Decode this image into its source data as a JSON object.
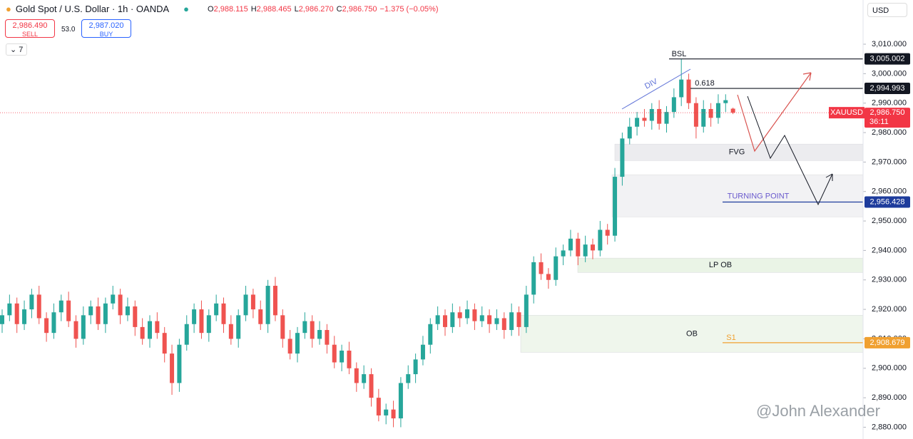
{
  "header": {
    "symbol": "Gold Spot / U.S. Dollar · 1h · OANDA",
    "ohlc": [
      {
        "key": "O",
        "value": "2,988.115"
      },
      {
        "key": "H",
        "value": "2,988.465"
      },
      {
        "key": "L",
        "value": "2,986.270"
      },
      {
        "key": "C",
        "value": "2,986.750"
      }
    ],
    "change": "−1.375 (−0.05%)",
    "sell_price": "2,986.490",
    "sell_label": "SELL",
    "spread": "53.0",
    "buy_price": "2,987.020",
    "buy_label": "BUY",
    "indicators": "7",
    "currency": "USD",
    "watermark": "@John Alexander"
  },
  "chart_data": {
    "type": "candlestick",
    "up_color": "#26a69a",
    "down_color": "#ef5350",
    "open": [
      2915,
      2918,
      2922,
      2915,
      2920,
      2925,
      2917,
      2912,
      2919,
      2923,
      2916,
      2910,
      2918,
      2921,
      2915,
      2922,
      2925,
      2918,
      2921,
      2914,
      2910,
      2916,
      2912,
      2905,
      2895,
      2908,
      2915,
      2920,
      2912,
      2918,
      2922,
      2915,
      2910,
      2918,
      2925,
      2920,
      2915,
      2928,
      2918,
      2910,
      2905,
      2912,
      2916,
      2910,
      2913,
      2908,
      2902,
      2906,
      2900,
      2895,
      2898,
      2890,
      2884,
      2886,
      2883,
      2895,
      2898,
      2903,
      2908,
      2915,
      2918,
      2914,
      2919,
      2917,
      2920,
      2916,
      2918,
      2915,
      2917,
      2913,
      2919,
      2914,
      2925,
      2936,
      2932,
      2930,
      2938,
      2940,
      2944,
      2938,
      2942,
      2940,
      2947,
      2945,
      2965,
      2978,
      2982,
      2985,
      2984,
      2988,
      2983,
      2987,
      2992,
      2998,
      2990,
      2982,
      2988,
      2985,
      2990,
      2988.115
    ],
    "high": [
      2920,
      2925,
      2924,
      2923,
      2927,
      2928,
      2919,
      2922,
      2925,
      2926,
      2918,
      2921,
      2923,
      2924,
      2924,
      2928,
      2927,
      2924,
      2923,
      2917,
      2918,
      2919,
      2914,
      2908,
      2910,
      2918,
      2922,
      2923,
      2920,
      2925,
      2924,
      2918,
      2920,
      2928,
      2927,
      2923,
      2930,
      2931,
      2920,
      2913,
      2914,
      2919,
      2918,
      2916,
      2915,
      2911,
      2908,
      2909,
      2902,
      2901,
      2900,
      2893,
      2888,
      2889,
      2897,
      2901,
      2905,
      2911,
      2917,
      2921,
      2920,
      2922,
      2921,
      2923,
      2922,
      2921,
      2920,
      2920,
      2919,
      2922,
      2921,
      2928,
      2938,
      2939,
      2934,
      2941,
      2942,
      2947,
      2946,
      2945,
      2944,
      2950,
      2949,
      2968,
      2980,
      2985,
      2987,
      2988,
      2990,
      2991,
      2989,
      2995,
      3005,
      3000,
      2992,
      2991,
      2990,
      2993,
      2993,
      2988.465
    ],
    "low": [
      2912,
      2916,
      2912,
      2913,
      2917,
      2915,
      2909,
      2910,
      2916,
      2914,
      2907,
      2908,
      2915,
      2913,
      2912,
      2920,
      2915,
      2916,
      2911,
      2908,
      2907,
      2910,
      2902,
      2891,
      2892,
      2906,
      2912,
      2910,
      2909,
      2916,
      2912,
      2908,
      2907,
      2916,
      2917,
      2913,
      2912,
      2916,
      2907,
      2903,
      2902,
      2910,
      2907,
      2908,
      2905,
      2900,
      2899,
      2898,
      2892,
      2893,
      2887,
      2882,
      2881,
      2880,
      2880,
      2893,
      2895,
      2901,
      2905,
      2913,
      2911,
      2912,
      2914,
      2915,
      2913,
      2914,
      2912,
      2913,
      2910,
      2911,
      2911,
      2912,
      2922,
      2930,
      2927,
      2928,
      2935,
      2938,
      2935,
      2936,
      2937,
      2938,
      2942,
      2943,
      2962,
      2976,
      2979,
      2982,
      2981,
      2981,
      2980,
      2985,
      2989,
      2988,
      2978,
      2980,
      2982,
      2983,
      2987,
      2986.27
    ],
    "close": [
      2918,
      2922,
      2915,
      2920,
      2925,
      2917,
      2912,
      2919,
      2923,
      2916,
      2910,
      2918,
      2921,
      2915,
      2922,
      2925,
      2918,
      2921,
      2914,
      2910,
      2916,
      2912,
      2905,
      2895,
      2908,
      2915,
      2920,
      2912,
      2918,
      2922,
      2915,
      2910,
      2918,
      2925,
      2920,
      2915,
      2928,
      2918,
      2910,
      2905,
      2912,
      2916,
      2910,
      2913,
      2908,
      2902,
      2906,
      2900,
      2895,
      2898,
      2890,
      2884,
      2886,
      2883,
      2895,
      2898,
      2903,
      2908,
      2915,
      2918,
      2914,
      2919,
      2917,
      2920,
      2916,
      2918,
      2915,
      2917,
      2913,
      2919,
      2914,
      2925,
      2936,
      2932,
      2930,
      2938,
      2940,
      2944,
      2938,
      2942,
      2940,
      2947,
      2945,
      2965,
      2978,
      2982,
      2985,
      2984,
      2988,
      2983,
      2987,
      2992,
      2998,
      2990,
      2982,
      2988,
      2985,
      2990,
      2991,
      2986.75
    ],
    "ylim": [
      2876,
      3025
    ],
    "yticks": [
      {
        "value": 2880,
        "label": "2,880.000"
      },
      {
        "value": 2890,
        "label": "2,890.000"
      },
      {
        "value": 2900,
        "label": "2,900.000"
      },
      {
        "value": 2910,
        "label": "2,910.000"
      },
      {
        "value": 2920,
        "label": "2,920.000"
      },
      {
        "value": 2930,
        "label": "2,930.000"
      },
      {
        "value": 2940,
        "label": "2,940.000"
      },
      {
        "value": 2950,
        "label": "2,950.000"
      },
      {
        "value": 2960,
        "label": "2,960.000"
      },
      {
        "value": 2970,
        "label": "2,970.000"
      },
      {
        "value": 2980,
        "label": "2,980.000"
      },
      {
        "value": 2990,
        "label": "2,990.000"
      },
      {
        "value": 3000,
        "label": "3,000.000"
      },
      {
        "value": 3010,
        "label": "3,010.000"
      }
    ],
    "levels": [
      {
        "value": 3005.002,
        "label": "3,005.002",
        "color": "#131722"
      },
      {
        "value": 2994.993,
        "label": "2,994.993",
        "color": "#131722"
      },
      {
        "value": 2986.75,
        "label": "2,986.750",
        "color": "#f23645",
        "symbol": "XAUUSD",
        "countdown": "36:11"
      },
      {
        "value": 2956.428,
        "label": "2,956.428",
        "color": "#1e3c9c"
      },
      {
        "value": 2908.679,
        "label": "2,908.679",
        "color": "#f0a030"
      }
    ],
    "zones": [
      {
        "label": "FVG",
        "top": 2976.1,
        "bottom": 2970.5,
        "color": "#ececef"
      },
      {
        "label": "TURNING POINT",
        "top": 2965.7,
        "bottom": 2951.4,
        "color": "#f2f2f4"
      },
      {
        "label": "LP OB",
        "top": 2937.4,
        "bottom": 2932.5,
        "color": "#eaf4e6"
      },
      {
        "label": "OB",
        "top": 2918,
        "bottom": 2905.4,
        "color": "#eff6ec"
      }
    ],
    "annotations": [
      "BSL",
      "0.618",
      "DIV",
      "S1"
    ]
  }
}
